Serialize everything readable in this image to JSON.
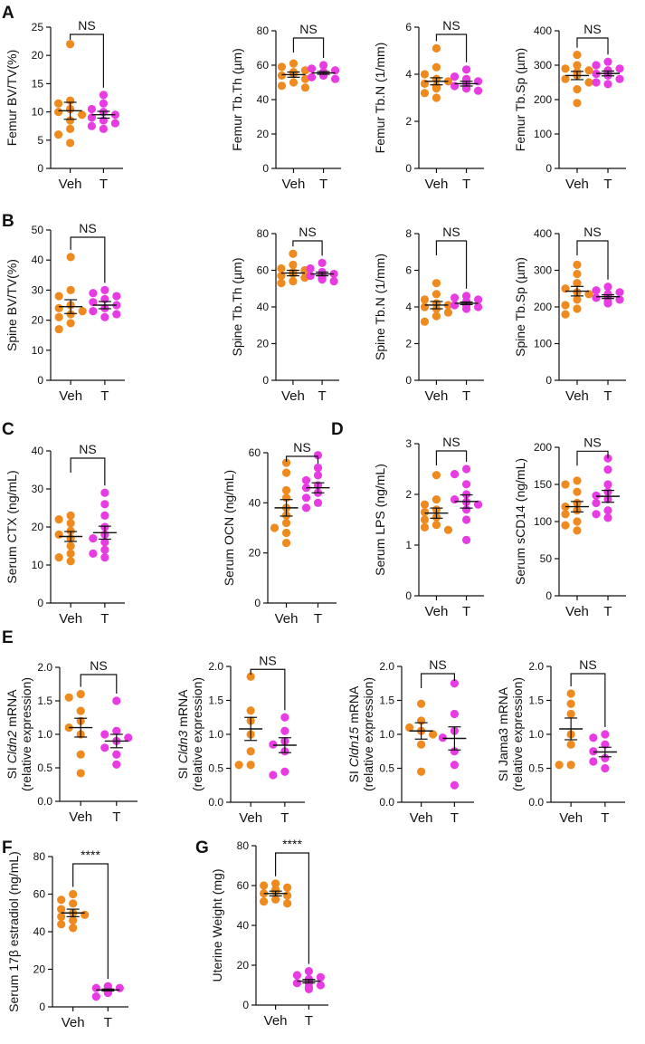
{
  "colors": {
    "veh": "#ef8a1f",
    "t": "#e83be3",
    "axis": "#111111"
  },
  "panel_letters": [
    "A",
    "B",
    "C",
    "D",
    "E",
    "F",
    "G"
  ],
  "chart_data": [
    {
      "type": "scatter",
      "panel": "A",
      "ylabel": "Femur BV/TV(%)",
      "ylim": [
        0,
        25
      ],
      "yticks": [
        0,
        5,
        10,
        15,
        20,
        25
      ],
      "categories": [
        "Veh",
        "T"
      ],
      "significance": "NS",
      "series": [
        {
          "name": "Veh",
          "values": [
            22.0,
            12.0,
            11.5,
            10.5,
            10.0,
            9.5,
            8.5,
            7.0,
            6.0,
            4.5
          ],
          "mean": 10.2,
          "sem": 1.5
        },
        {
          "name": "T",
          "values": [
            13.0,
            11.5,
            10.5,
            10.0,
            9.5,
            9.0,
            8.5,
            8.0,
            7.0,
            7.5
          ],
          "mean": 9.5,
          "sem": 0.6
        }
      ]
    },
    {
      "type": "scatter",
      "panel": "A",
      "ylabel": "Femur Tb.Th (µm)",
      "ylim": [
        0,
        80
      ],
      "yticks": [
        0,
        20,
        40,
        60,
        80
      ],
      "categories": [
        "Veh",
        "T"
      ],
      "significance": "NS",
      "series": [
        {
          "name": "Veh",
          "values": [
            61,
            59,
            57,
            56,
            55,
            54,
            52,
            50,
            48,
            47
          ],
          "mean": 54.5,
          "sem": 1.5
        },
        {
          "name": "T",
          "values": [
            60,
            58,
            57,
            56,
            55,
            55,
            54,
            54,
            53,
            52
          ],
          "mean": 55.5,
          "sem": 0.8
        }
      ]
    },
    {
      "type": "scatter",
      "panel": "A",
      "ylabel": "Femur Tb.N (1/mm)",
      "ylim": [
        0,
        6
      ],
      "yticks": [
        0,
        2,
        4,
        6
      ],
      "categories": [
        "Veh",
        "T"
      ],
      "significance": "NS",
      "series": [
        {
          "name": "Veh",
          "values": [
            5.1,
            4.3,
            4.0,
            3.8,
            3.7,
            3.6,
            3.5,
            3.4,
            3.2,
            3.0
          ],
          "mean": 3.7,
          "sem": 0.15
        },
        {
          "name": "T",
          "values": [
            4.2,
            3.9,
            3.8,
            3.7,
            3.7,
            3.6,
            3.5,
            3.4,
            3.4,
            3.3
          ],
          "mean": 3.6,
          "sem": 0.1
        }
      ]
    },
    {
      "type": "scatter",
      "panel": "A",
      "ylabel": "Femur Tb.Sp (µm)",
      "ylim": [
        0,
        400
      ],
      "yticks": [
        0,
        100,
        200,
        300,
        400
      ],
      "categories": [
        "Veh",
        "T"
      ],
      "significance": "NS",
      "series": [
        {
          "name": "Veh",
          "values": [
            330,
            300,
            290,
            285,
            280,
            270,
            260,
            250,
            230,
            190
          ],
          "mean": 270,
          "sem": 12
        },
        {
          "name": "T",
          "values": [
            310,
            300,
            290,
            285,
            280,
            275,
            270,
            260,
            250,
            245
          ],
          "mean": 276,
          "sem": 7
        }
      ]
    },
    {
      "type": "scatter",
      "panel": "B",
      "ylabel": "Spine BV/TV(%)",
      "ylim": [
        0,
        50
      ],
      "yticks": [
        0,
        10,
        20,
        30,
        40,
        50
      ],
      "categories": [
        "Veh",
        "T"
      ],
      "significance": "NS",
      "series": [
        {
          "name": "Veh",
          "values": [
            41,
            30,
            28,
            25,
            24,
            23,
            22,
            21,
            19,
            17
          ],
          "mean": 24.5,
          "sem": 2.3
        },
        {
          "name": "T",
          "values": [
            30,
            29,
            28,
            27,
            26,
            25,
            24,
            23,
            22,
            21
          ],
          "mean": 25.0,
          "sem": 1.2
        }
      ]
    },
    {
      "type": "scatter",
      "panel": "B",
      "ylabel": "Spine Tb.Th (µm)",
      "ylim": [
        0,
        80
      ],
      "yticks": [
        0,
        20,
        40,
        60,
        80
      ],
      "categories": [
        "Veh",
        "T"
      ],
      "significance": "NS",
      "series": [
        {
          "name": "Veh",
          "values": [
            69,
            63,
            61,
            60,
            59,
            58,
            57,
            56,
            54,
            53
          ],
          "mean": 58.5,
          "sem": 1.5
        },
        {
          "name": "T",
          "values": [
            64,
            61,
            59,
            58,
            58,
            57,
            57,
            56,
            55,
            54
          ],
          "mean": 58.0,
          "sem": 1.0
        }
      ]
    },
    {
      "type": "scatter",
      "panel": "B",
      "ylabel": "Spine Tb.N (1/mm)",
      "ylim": [
        0,
        8
      ],
      "yticks": [
        0,
        2,
        4,
        6,
        8
      ],
      "categories": [
        "Veh",
        "T"
      ],
      "significance": "NS",
      "series": [
        {
          "name": "Veh",
          "values": [
            5.3,
            4.7,
            4.4,
            4.2,
            4.1,
            4.0,
            3.9,
            3.7,
            3.5,
            3.2
          ],
          "mean": 4.1,
          "sem": 0.2
        },
        {
          "name": "T",
          "values": [
            4.6,
            4.5,
            4.4,
            4.3,
            4.2,
            4.2,
            4.1,
            4.1,
            4.0,
            3.9
          ],
          "mean": 4.2,
          "sem": 0.07
        }
      ]
    },
    {
      "type": "scatter",
      "panel": "B",
      "ylabel": "Spine Tb.Sp (µm)",
      "ylim": [
        0,
        400
      ],
      "yticks": [
        0,
        100,
        200,
        300,
        400
      ],
      "categories": [
        "Veh",
        "T"
      ],
      "significance": "NS",
      "series": [
        {
          "name": "Veh",
          "values": [
            315,
            290,
            265,
            250,
            240,
            235,
            220,
            205,
            195,
            180
          ],
          "mean": 243,
          "sem": 13
        },
        {
          "name": "T",
          "values": [
            255,
            245,
            240,
            235,
            230,
            228,
            225,
            220,
            215,
            210
          ],
          "mean": 228,
          "sem": 5
        }
      ]
    },
    {
      "type": "scatter",
      "panel": "C",
      "ylabel": "Serum CTX (ng/mL)",
      "ylim": [
        0,
        40
      ],
      "yticks": [
        0,
        10,
        20,
        30,
        40
      ],
      "categories": [
        "Veh",
        "T"
      ],
      "significance": "NS",
      "series": [
        {
          "name": "Veh",
          "values": [
            23,
            22,
            21,
            19,
            18,
            17,
            15,
            13,
            12,
            11
          ],
          "mean": 17.5,
          "sem": 1.3
        },
        {
          "name": "T",
          "values": [
            29,
            26,
            23,
            20,
            18,
            17,
            16,
            14,
            13,
            12
          ],
          "mean": 18.5,
          "sem": 1.7
        }
      ]
    },
    {
      "type": "scatter",
      "panel": "C",
      "ylabel": "Serum OCN (ng/mL)",
      "ylim": [
        0,
        60
      ],
      "yticks": [
        0,
        20,
        40,
        60
      ],
      "categories": [
        "Veh",
        "T"
      ],
      "significance": "NS",
      "series": [
        {
          "name": "Veh",
          "values": [
            56,
            52,
            45,
            42,
            38,
            35,
            32,
            30,
            28,
            24
          ],
          "mean": 38,
          "sem": 3.3
        },
        {
          "name": "T",
          "values": [
            59,
            54,
            51,
            49,
            47,
            46,
            44,
            42,
            40,
            38
          ],
          "mean": 46,
          "sem": 2.0
        }
      ]
    },
    {
      "type": "scatter",
      "panel": "D",
      "ylabel": "Serum LPS (ng/mL)",
      "ylim": [
        0,
        3
      ],
      "yticks": [
        0,
        1,
        2,
        3
      ],
      "categories": [
        "Veh",
        "T"
      ],
      "significance": "NS",
      "series": [
        {
          "name": "Veh",
          "values": [
            2.38,
            1.9,
            1.8,
            1.7,
            1.65,
            1.55,
            1.5,
            1.4,
            1.35,
            1.3
          ],
          "mean": 1.63,
          "sem": 0.1
        },
        {
          "name": "T",
          "values": [
            2.5,
            2.4,
            2.2,
            2.0,
            1.9,
            1.85,
            1.8,
            1.7,
            1.5,
            1.1
          ],
          "mean": 1.86,
          "sem": 0.13
        }
      ]
    },
    {
      "type": "scatter",
      "panel": "D",
      "ylabel": "Serum sCD14 (ng/mL)",
      "ylim": [
        0,
        200
      ],
      "yticks": [
        0,
        50,
        100,
        150,
        200
      ],
      "categories": [
        "Veh",
        "T"
      ],
      "significance": "NS",
      "series": [
        {
          "name": "Veh",
          "values": [
            155,
            150,
            140,
            125,
            120,
            115,
            110,
            100,
            95,
            88
          ],
          "mean": 120,
          "sem": 7
        },
        {
          "name": "T",
          "values": [
            185,
            170,
            150,
            140,
            135,
            130,
            125,
            115,
            110,
            105
          ],
          "mean": 134,
          "sem": 8
        }
      ]
    },
    {
      "type": "scatter",
      "panel": "E",
      "ylabel": "SI Cldn2 mRNA",
      "ylabel_italic": "Cldn2",
      "ylabel2": "(relative expression)",
      "ylim": [
        0,
        2.0
      ],
      "yticks": [
        "0.0",
        "0.5",
        "1.0",
        "1.5",
        "2.0"
      ],
      "categories": [
        "Veh",
        "T"
      ],
      "significance": "NS",
      "series": [
        {
          "name": "Veh",
          "values": [
            1.6,
            1.55,
            1.35,
            1.2,
            1.1,
            1.0,
            0.7,
            0.42
          ],
          "mean": 1.1,
          "sem": 0.14
        },
        {
          "name": "T",
          "values": [
            1.5,
            1.05,
            1.0,
            0.95,
            0.9,
            0.8,
            0.7,
            0.55
          ],
          "mean": 0.9,
          "sem": 0.1
        }
      ]
    },
    {
      "type": "scatter",
      "panel": "E",
      "ylabel": "SI Cldn3 mRNA",
      "ylabel_italic": "Cldn3",
      "ylabel2": "(relative expression)",
      "ylim": [
        0,
        2.0
      ],
      "yticks": [
        "0.0",
        "0.5",
        "1.0",
        "1.5",
        "2.0"
      ],
      "categories": [
        "Veh",
        "T"
      ],
      "significance": "NS",
      "series": [
        {
          "name": "Veh",
          "values": [
            1.85,
            1.35,
            1.2,
            1.0,
            0.75,
            0.55,
            0.55
          ],
          "mean": 1.08,
          "sem": 0.17
        },
        {
          "name": "T",
          "values": [
            1.25,
            1.05,
            0.9,
            0.85,
            0.75,
            0.45,
            0.4
          ],
          "mean": 0.84,
          "sem": 0.11
        }
      ]
    },
    {
      "type": "scatter",
      "panel": "E",
      "ylabel": "SI Cldn15 mRNA",
      "ylabel_italic": "Cldn15",
      "ylabel2": "(relative expression)",
      "ylim": [
        0,
        2.0
      ],
      "yticks": [
        "0.0",
        "0.5",
        "1.0",
        "1.5",
        "2.0"
      ],
      "categories": [
        "Veh",
        "T"
      ],
      "significance": "NS",
      "series": [
        {
          "name": "Veh",
          "values": [
            1.45,
            1.2,
            1.1,
            1.05,
            1.0,
            0.85,
            0.45
          ],
          "mean": 1.05,
          "sem": 0.12
        },
        {
          "name": "T",
          "values": [
            1.75,
            1.3,
            1.05,
            0.95,
            0.75,
            0.55,
            0.25
          ],
          "mean": 0.94,
          "sem": 0.17
        }
      ]
    },
    {
      "type": "scatter",
      "panel": "E",
      "ylabel": "SI Jama3 mRNA",
      "ylabel2": "(relative expression)",
      "ylim": [
        0,
        2.0
      ],
      "yticks": [
        "0.0",
        "0.5",
        "1.0",
        "1.5",
        "2.0"
      ],
      "categories": [
        "Veh",
        "T"
      ],
      "significance": "NS",
      "series": [
        {
          "name": "Veh",
          "values": [
            1.6,
            1.45,
            1.3,
            1.0,
            0.85,
            0.55,
            0.55
          ],
          "mean": 1.08,
          "sem": 0.16
        },
        {
          "name": "T",
          "values": [
            1.0,
            0.95,
            0.85,
            0.75,
            0.65,
            0.6,
            0.5
          ],
          "mean": 0.74,
          "sem": 0.07
        }
      ]
    },
    {
      "type": "scatter",
      "panel": "F",
      "ylabel": "Serum 17β estradiol (ng/mL)",
      "ylim": [
        0,
        80
      ],
      "yticks": [
        0,
        20,
        40,
        60,
        80
      ],
      "categories": [
        "Veh",
        "T"
      ],
      "significance": "****",
      "series": [
        {
          "name": "Veh",
          "values": [
            60,
            57,
            55,
            52,
            50,
            49,
            48,
            46,
            44,
            42
          ],
          "mean": 50,
          "sem": 2
        },
        {
          "name": "T",
          "values": [
            11,
            10,
            10,
            9.5,
            9,
            9,
            8.5,
            8,
            7.5,
            5.5
          ],
          "mean": 9,
          "sem": 0.5
        }
      ]
    },
    {
      "type": "scatter",
      "panel": "G",
      "ylabel": "Uterine Weight (mg)",
      "ylim": [
        0,
        80
      ],
      "yticks": [
        0,
        20,
        40,
        60,
        80
      ],
      "categories": [
        "Veh",
        "T"
      ],
      "significance": "****",
      "series": [
        {
          "name": "Veh",
          "values": [
            61,
            60,
            59,
            58,
            57,
            56,
            55,
            53,
            52,
            51
          ],
          "mean": 56,
          "sem": 1.2
        },
        {
          "name": "T",
          "values": [
            17,
            15,
            14,
            13,
            12,
            11,
            11,
            10,
            9,
            8
          ],
          "mean": 12,
          "sem": 0.9
        }
      ]
    }
  ]
}
